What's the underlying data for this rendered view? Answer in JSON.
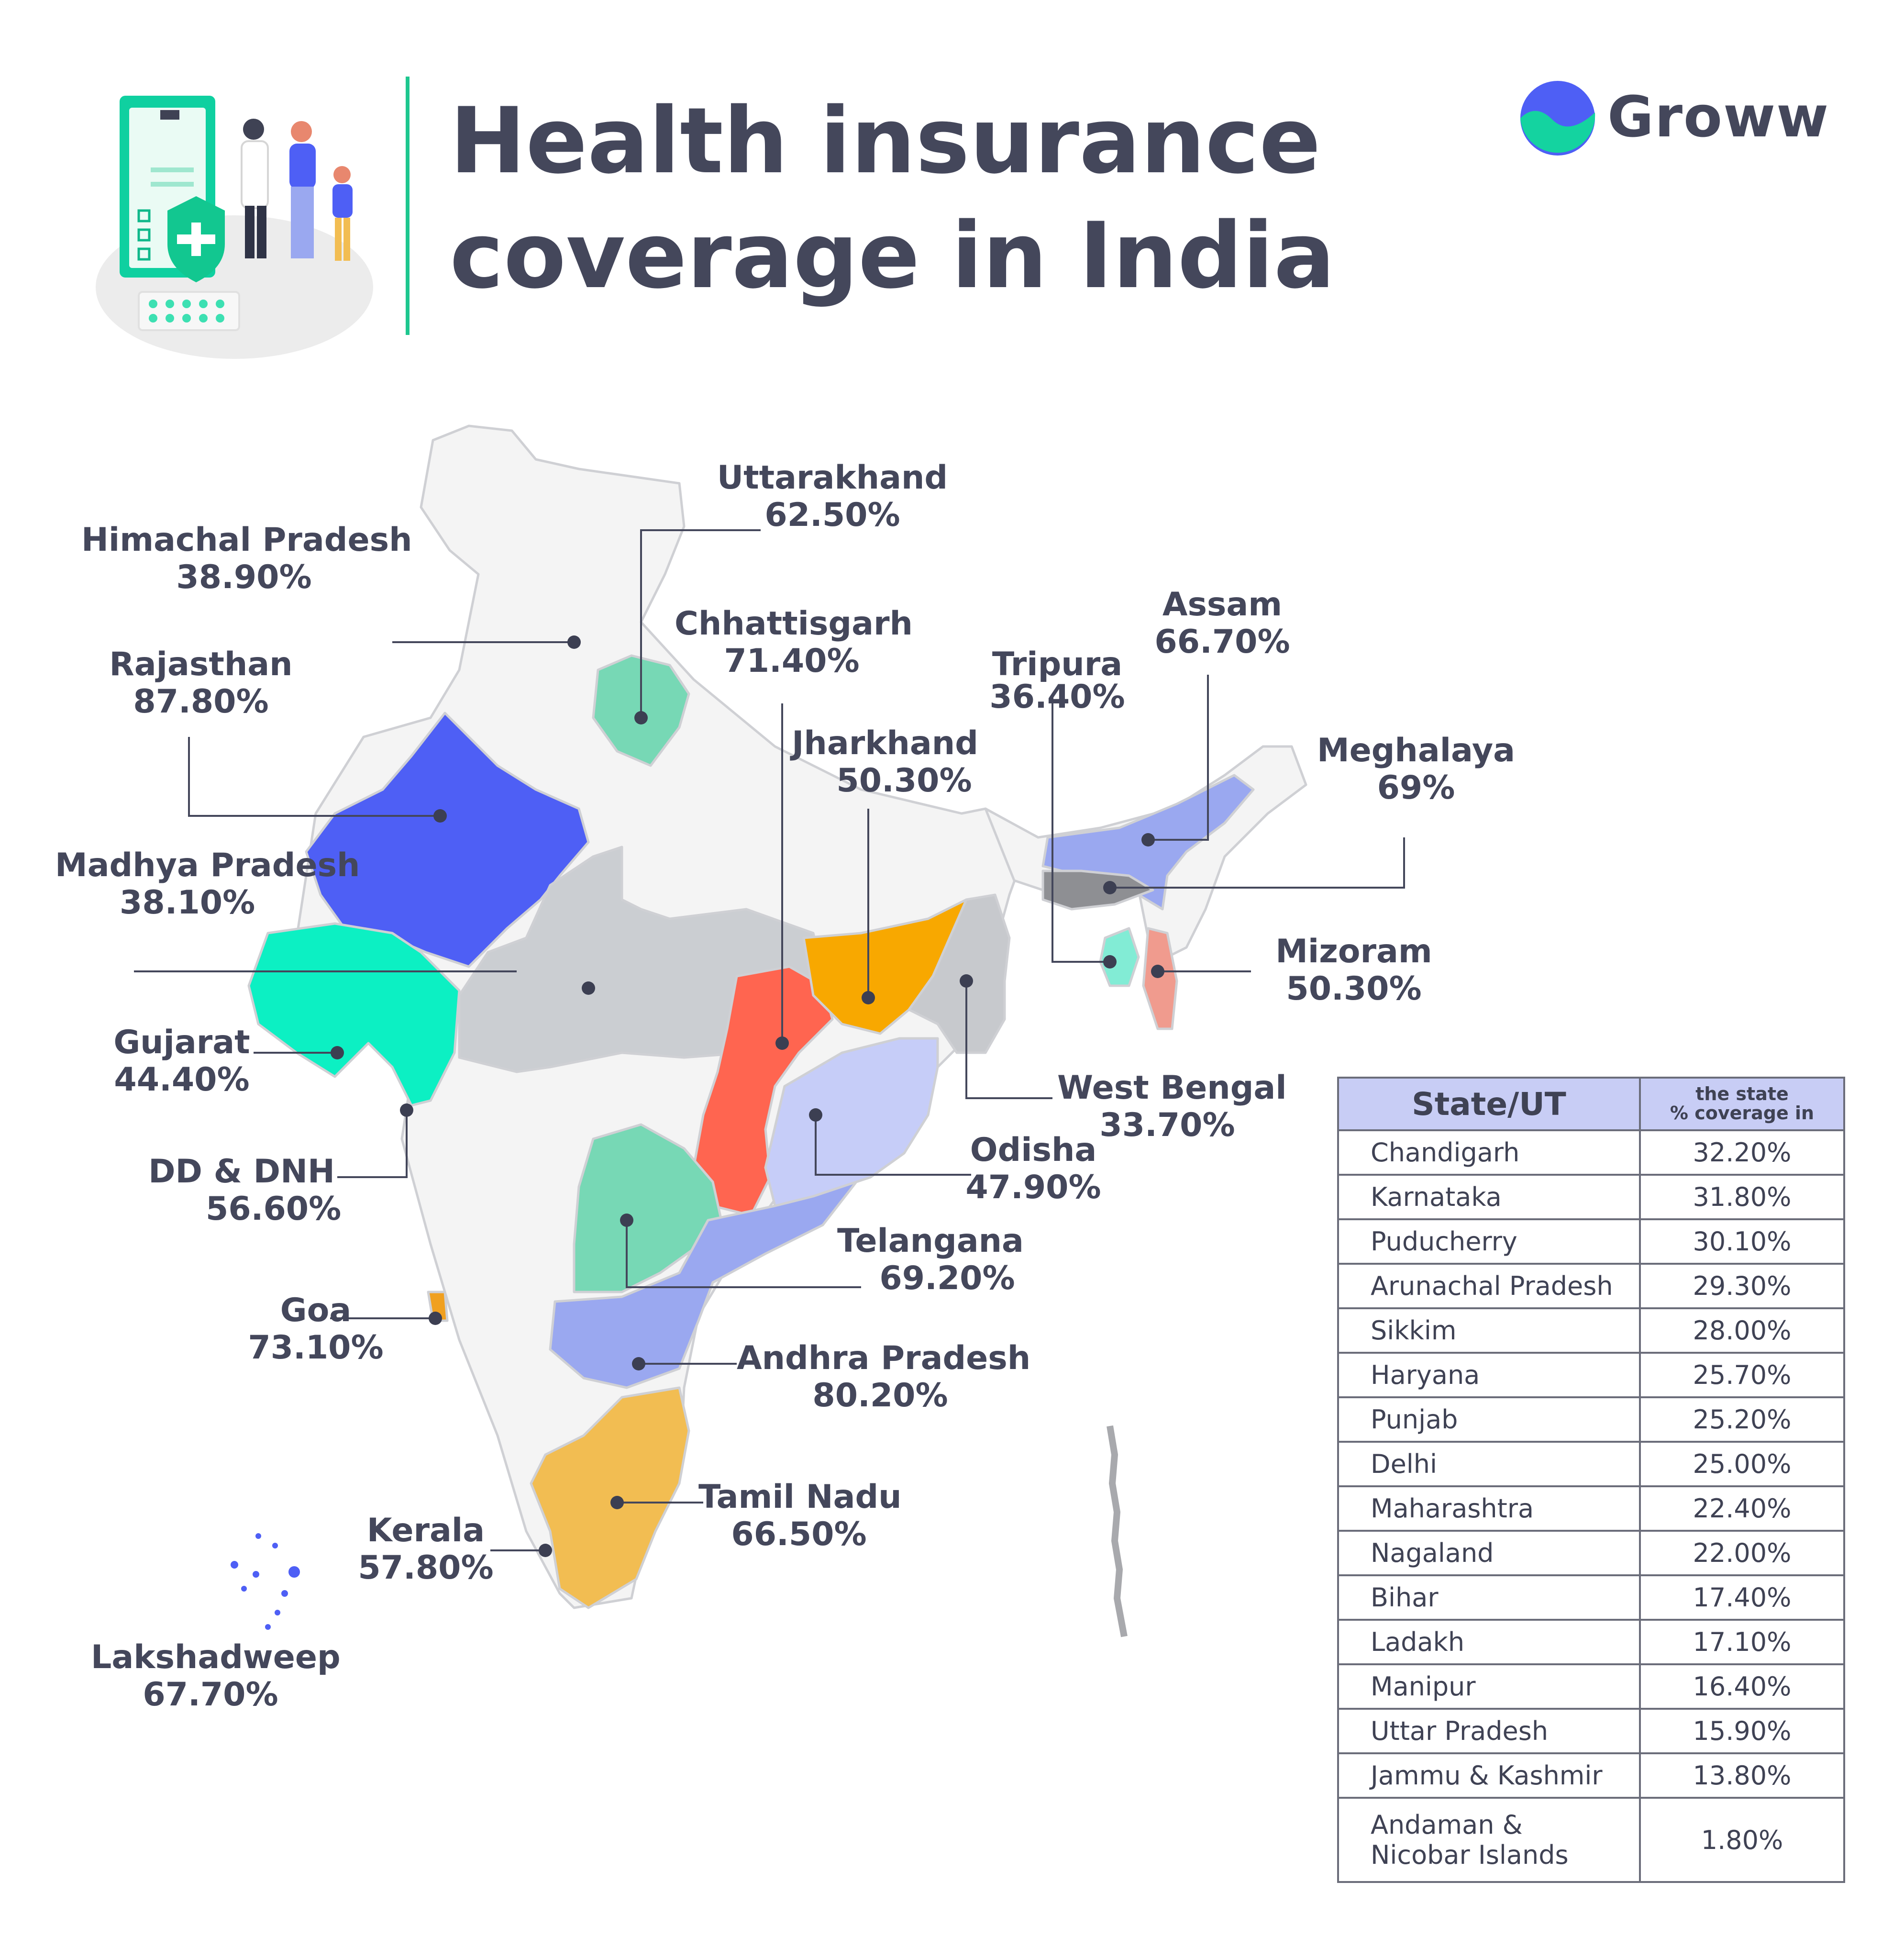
{
  "header": {
    "title_line1": "Health insurance",
    "title_line2": "coverage in India",
    "brand": "Groww"
  },
  "map": {
    "states": [
      {
        "id": "himachal",
        "name": "Himachal Pradesh",
        "value": "38.90%",
        "color": "#f4f4f4"
      },
      {
        "id": "uttarakhand",
        "name": "Uttarakhand",
        "value": "62.50%",
        "color": "#77d8b5"
      },
      {
        "id": "rajasthan",
        "name": "Rajasthan",
        "value": "87.80%",
        "color": "#4e5ff5"
      },
      {
        "id": "chhattisgarh",
        "name": "Chhattisgarh",
        "value": "71.40%",
        "color": "#ff6550"
      },
      {
        "id": "jharkhand",
        "name": "Jharkhand",
        "value": "50.30%",
        "color": "#f8a800"
      },
      {
        "id": "tripura",
        "name": "Tripura",
        "value": "36.40%",
        "color": "#82ecd5"
      },
      {
        "id": "assam",
        "name": "Assam",
        "value": "66.70%",
        "color": "#9aa8f0"
      },
      {
        "id": "meghalaya",
        "name": "Meghalaya",
        "value": "69%",
        "color": "#8e8f93"
      },
      {
        "id": "madhya",
        "name": "Madhya Pradesh",
        "value": "38.10%",
        "color": "#cbced2"
      },
      {
        "id": "mizoram",
        "name": "Mizoram",
        "value": "50.30%",
        "color": "#f09b8e"
      },
      {
        "id": "gujarat",
        "name": "Gujarat",
        "value": "44.40%",
        "color": "#0cf0c3"
      },
      {
        "id": "westbengal",
        "name": "West Bengal",
        "value": "33.70%",
        "color": "#c7c9cd"
      },
      {
        "id": "dddnh",
        "name": "DD & DNH",
        "value": "56.60%",
        "color": "#0cf0c3"
      },
      {
        "id": "odisha",
        "name": "Odisha",
        "value": "47.90%",
        "color": "#c6cdf8"
      },
      {
        "id": "telangana",
        "name": "Telangana",
        "value": "69.20%",
        "color": "#77d8b5"
      },
      {
        "id": "goa",
        "name": "Goa",
        "value": "73.10%",
        "color": "#f0a020"
      },
      {
        "id": "andhra",
        "name": "Andhra Pradesh",
        "value": "80.20%",
        "color": "#9aa8f0"
      },
      {
        "id": "tamilnadu",
        "name": "Tamil Nadu",
        "value": "66.50%",
        "color": "#f2bd52"
      },
      {
        "id": "kerala",
        "name": "Kerala",
        "value": "57.80%",
        "color": "#f4f4f4"
      },
      {
        "id": "lakshadweep",
        "name": "Lakshadweep",
        "value": "67.70%",
        "color": "#4e5ff5"
      }
    ]
  },
  "table": {
    "col_state": "State/UT",
    "col_cov_line1": "the state",
    "col_cov_line2": "% coverage in",
    "rows": [
      {
        "state": "Chandigarh",
        "value": "32.20%"
      },
      {
        "state": "Karnataka",
        "value": "31.80%"
      },
      {
        "state": "Puducherry",
        "value": "30.10%"
      },
      {
        "state": "Arunachal Pradesh",
        "value": "29.30%"
      },
      {
        "state": "Sikkim",
        "value": "28.00%"
      },
      {
        "state": "Haryana",
        "value": "25.70%"
      },
      {
        "state": "Punjab",
        "value": "25.20%"
      },
      {
        "state": "Delhi",
        "value": "25.00%"
      },
      {
        "state": "Maharashtra",
        "value": "22.40%"
      },
      {
        "state": "Nagaland",
        "value": "22.00%"
      },
      {
        "state": "Bihar",
        "value": "17.40%"
      },
      {
        "state": "Ladakh",
        "value": "17.10%"
      },
      {
        "state": "Manipur",
        "value": "16.40%"
      },
      {
        "state": "Uttar Pradesh",
        "value": "15.90%"
      },
      {
        "state": "Jammu & Kashmir",
        "value": "13.80%"
      },
      {
        "state": "Andaman &",
        "state_line2": "Nicobar Islands",
        "value": "1.80%"
      }
    ]
  },
  "colors": {
    "accent": "#1ec78f",
    "text": "#44475b",
    "base_land": "#f4f4f4",
    "border": "#cfd0d4",
    "table_header": "#c8cdf5"
  }
}
